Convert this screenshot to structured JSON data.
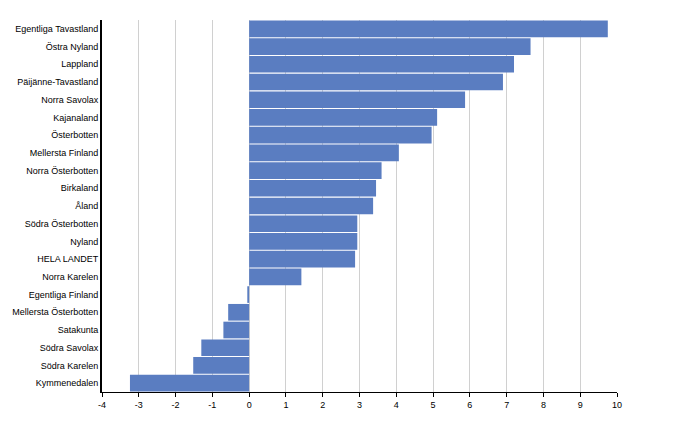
{
  "chart_data": {
    "type": "bar",
    "orientation": "horizontal",
    "categories": [
      "Egentliga Tavastland",
      "Östra Nyland",
      "Lappland",
      "Päijänne-Tavastland",
      "Norra Savolax",
      "Kajanaland",
      "Österbotten",
      "Mellersta Finland",
      "Norra Österbotten",
      "Birkaland",
      "Åland",
      "Södra Österbotten",
      "Nyland",
      "HELA LANDET",
      "Norra Karelen",
      "Egentliga Finland",
      "Mellersta Österbotten",
      "Satakunta",
      "Södra Savolax",
      "Södra Karelen",
      "Kymmenedalen"
    ],
    "values": [
      9.75,
      7.65,
      7.2,
      6.9,
      5.87,
      5.11,
      4.96,
      4.07,
      3.6,
      3.45,
      3.37,
      2.94,
      2.94,
      2.88,
      1.42,
      -0.05,
      -0.57,
      -0.7,
      -1.3,
      -1.52,
      -3.24
    ],
    "color": "#5a7dc1",
    "xlim": [
      -4,
      10
    ],
    "xticks": [
      -4,
      -3,
      -2,
      -1,
      0,
      1,
      2,
      3,
      4,
      5,
      6,
      7,
      8,
      9,
      10
    ],
    "grid": true
  }
}
